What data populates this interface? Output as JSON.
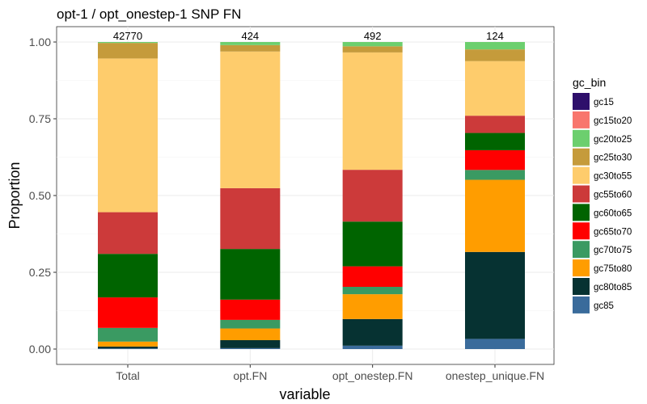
{
  "chart_data": {
    "type": "bar",
    "stacked": true,
    "title": "opt-1 / opt_onestep-1 SNP FN",
    "xlabel": "variable",
    "ylabel": "Proportion",
    "ylim": [
      0,
      1
    ],
    "y_ticks": [
      "0.00",
      "0.25",
      "0.50",
      "0.75",
      "1.00"
    ],
    "y_tick_values": [
      0,
      0.25,
      0.5,
      0.75,
      1.0
    ],
    "grid": true,
    "legend_position": "right",
    "legend_title": "gc_bin",
    "categories": [
      "Total",
      "opt.FN",
      "opt_onestep.FN",
      "onestep_unique.FN"
    ],
    "counts": [
      "42770",
      "424",
      "492",
      "124"
    ],
    "series": [
      {
        "name": "gc15",
        "color": "#2e0f6b",
        "values": [
          0.0,
          0.0,
          0.0,
          0.0
        ]
      },
      {
        "name": "gc15to20",
        "color": "#f8766d",
        "values": [
          0.0,
          0.0,
          0.0,
          0.0
        ]
      },
      {
        "name": "gc20to25",
        "color": "#6ccf6e",
        "values": [
          0.003,
          0.01,
          0.014,
          0.024
        ]
      },
      {
        "name": "gc25to30",
        "color": "#c59b3b",
        "values": [
          0.05,
          0.021,
          0.02,
          0.038
        ]
      },
      {
        "name": "gc30to55",
        "color": "#fecc6c",
        "values": [
          0.494,
          0.445,
          0.383,
          0.177
        ]
      },
      {
        "name": "gc55to60",
        "color": "#cc3a3a",
        "values": [
          0.134,
          0.198,
          0.169,
          0.056
        ]
      },
      {
        "name": "gc60to65",
        "color": "#006400",
        "values": [
          0.14,
          0.165,
          0.146,
          0.056
        ]
      },
      {
        "name": "gc65to70",
        "color": "#ff0000",
        "values": [
          0.098,
          0.066,
          0.067,
          0.064
        ]
      },
      {
        "name": "gc70to75",
        "color": "#3a9a62",
        "values": [
          0.044,
          0.028,
          0.024,
          0.032
        ]
      },
      {
        "name": "gc75to80",
        "color": "#ff9d00",
        "values": [
          0.016,
          0.038,
          0.081,
          0.234
        ]
      },
      {
        "name": "gc80to85",
        "color": "#063232",
        "values": [
          0.006,
          0.026,
          0.087,
          0.282
        ]
      },
      {
        "name": "gc85",
        "color": "#3a6b9b",
        "values": [
          0.002,
          0.003,
          0.011,
          0.033
        ]
      }
    ]
  }
}
